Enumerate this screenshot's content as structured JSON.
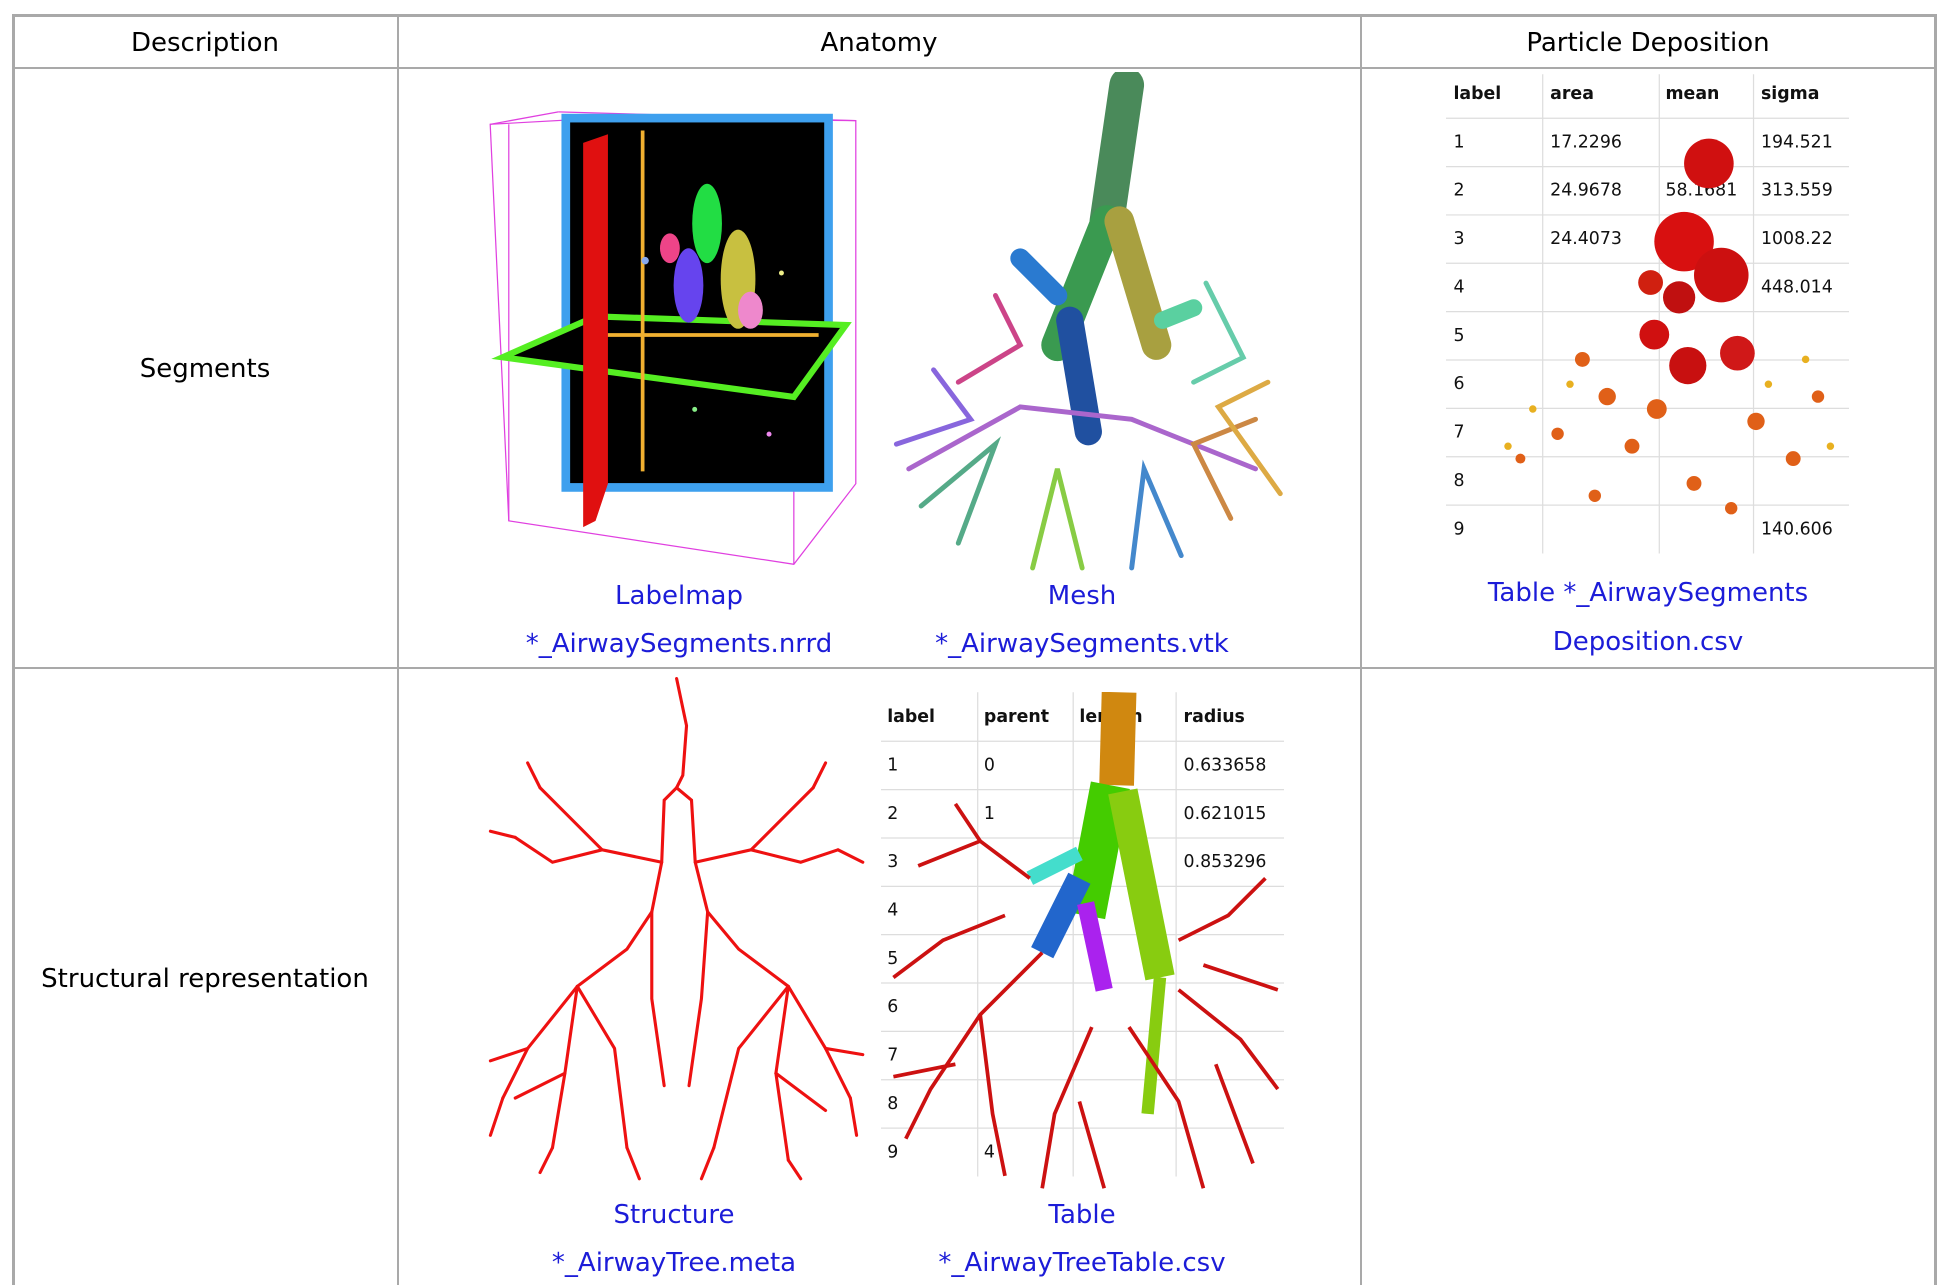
{
  "table": {
    "header": [
      "Description",
      "Anatomy",
      "Particle Deposition"
    ],
    "rows": [
      {
        "description": "Segments",
        "anatomy": [
          {
            "caption": "Labelmap",
            "file": "*_AirwaySegments.nrrd"
          },
          {
            "caption": "Mesh",
            "file": "*_AirwaySegments.vtk"
          }
        ],
        "deposition": {
          "caption": "Table *_AirwaySegments",
          "file": "Deposition.csv",
          "image_table": {
            "columns": [
              "label",
              "area",
              "mean",
              "sigma"
            ],
            "rows": [
              [
                "1",
                "17.2296",
                null,
                "194.521"
              ],
              [
                "2",
                "24.9678",
                "58.1681",
                "313.559"
              ],
              [
                "3",
                "24.4073",
                null,
                "1008.22"
              ],
              [
                "4",
                null,
                null,
                "448.014"
              ],
              [
                "5",
                null,
                null,
                null
              ],
              [
                "6",
                null,
                null,
                null
              ],
              [
                "7",
                null,
                null,
                null
              ],
              [
                "8",
                null,
                null,
                null
              ],
              [
                "9",
                null,
                null,
                "140.606"
              ]
            ]
          }
        }
      },
      {
        "description": "Structural representation",
        "anatomy": [
          {
            "caption": "Structure",
            "file": "*_AirwayTree.meta"
          },
          {
            "caption": "Table",
            "file": "*_AirwayTreeTable.csv",
            "image_table": {
              "columns": [
                "label",
                "parent",
                "length",
                "radius"
              ],
              "rows": [
                [
                  "1",
                  "0",
                  null,
                  "0.633658"
                ],
                [
                  "2",
                  "1",
                  null,
                  "0.621015"
                ],
                [
                  "3",
                  null,
                  null,
                  "0.853296"
                ],
                [
                  "4",
                  null,
                  null,
                  null
                ],
                [
                  "5",
                  null,
                  null,
                  null
                ],
                [
                  "6",
                  null,
                  null,
                  null
                ],
                [
                  "7",
                  null,
                  null,
                  null
                ],
                [
                  "8",
                  null,
                  null,
                  null
                ],
                [
                  "9",
                  "4",
                  null,
                  null
                ]
              ]
            }
          }
        ]
      }
    ]
  }
}
